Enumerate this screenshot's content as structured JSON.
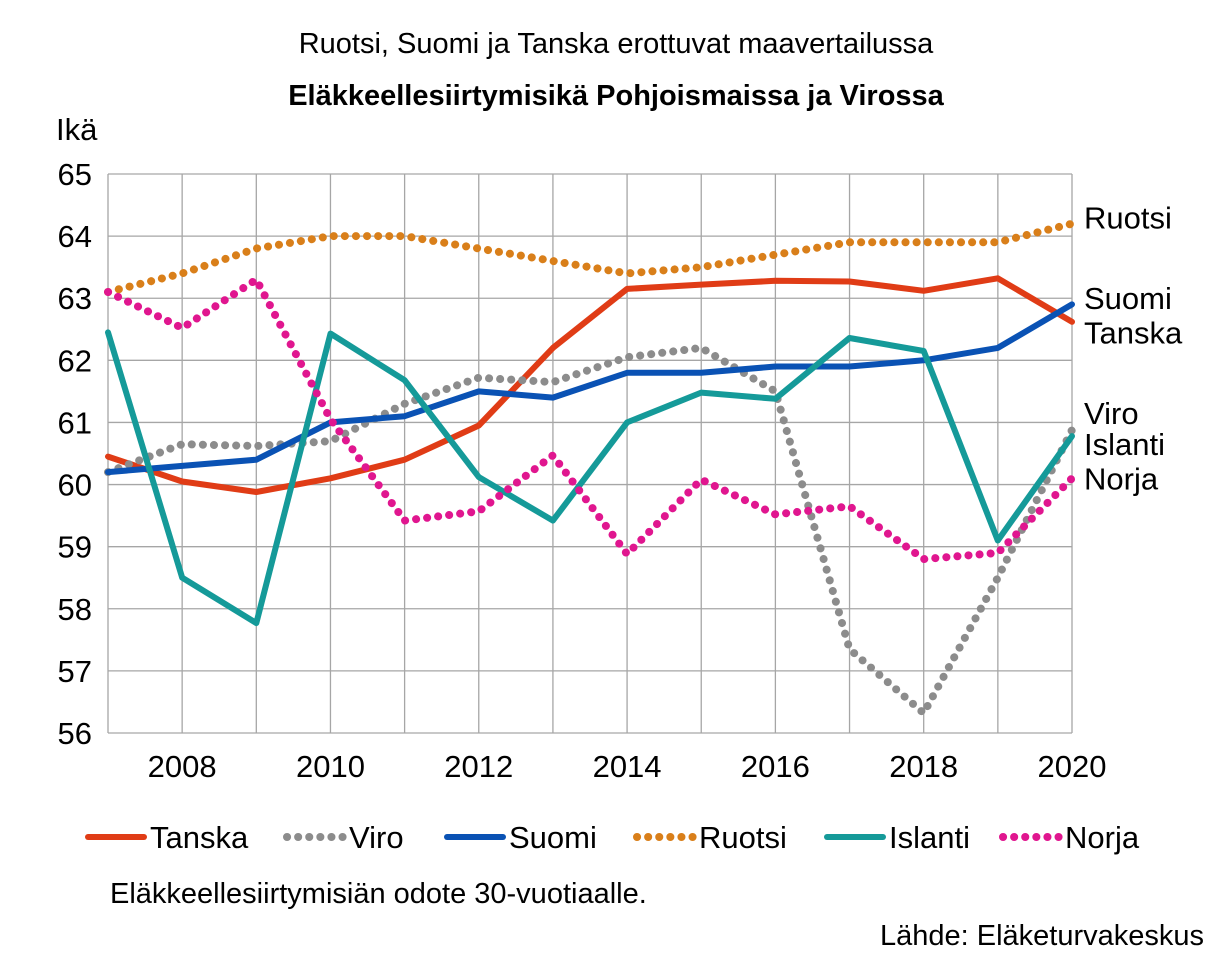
{
  "subtitle": "Ruotsi, Suomi ja Tanska erottuvat maavertailussa",
  "title": "Eläkkeellesiirtymisikä Pohjoismaissa ja Virossa",
  "footnote": "Eläkkeellesiirtymisiän odote 30-vuotiaalle.",
  "source": "Lähde: Eläketurvakeskus",
  "chart_data": {
    "type": "line",
    "ylabel": "Ikä",
    "xlabel": "",
    "ylim": [
      56,
      65
    ],
    "xlim": [
      2007,
      2020
    ],
    "yticks": [
      56,
      57,
      58,
      59,
      60,
      61,
      62,
      63,
      64,
      65
    ],
    "xticks": [
      2008,
      2010,
      2012,
      2014,
      2016,
      2018,
      2020
    ],
    "grid": true,
    "legend": "bottom",
    "x": [
      2007,
      2008,
      2009,
      2010,
      2011,
      2012,
      2013,
      2014,
      2015,
      2016,
      2017,
      2018,
      2019,
      2020
    ],
    "series": [
      {
        "name": "Tanska",
        "color": "#e03c16",
        "style": "solid",
        "values": [
          60.45,
          60.05,
          59.88,
          60.1,
          60.4,
          60.95,
          62.2,
          63.15,
          63.22,
          63.28,
          63.27,
          63.12,
          63.32,
          62.62
        ]
      },
      {
        "name": "Viro",
        "color": "#8c8c8c",
        "style": "dotted",
        "values": [
          60.2,
          60.65,
          60.62,
          60.7,
          61.3,
          61.72,
          61.65,
          62.05,
          62.2,
          61.5,
          57.35,
          56.32,
          58.5,
          60.88
        ]
      },
      {
        "name": "Suomi",
        "color": "#0a52b4",
        "style": "solid",
        "values": [
          60.2,
          60.3,
          60.4,
          61.0,
          61.1,
          61.5,
          61.4,
          61.8,
          61.8,
          61.9,
          61.9,
          62.0,
          62.2,
          62.9
        ]
      },
      {
        "name": "Ruotsi",
        "color": "#d97f1a",
        "style": "dotted",
        "values": [
          63.1,
          63.4,
          63.8,
          64.0,
          64.0,
          63.8,
          63.6,
          63.4,
          63.5,
          63.7,
          63.9,
          63.9,
          63.9,
          64.2
        ]
      },
      {
        "name": "Islanti",
        "color": "#159a99",
        "style": "solid",
        "values": [
          62.45,
          58.5,
          57.77,
          62.43,
          61.68,
          60.12,
          59.42,
          61.0,
          61.48,
          61.38,
          62.36,
          62.15,
          59.1,
          60.78
        ]
      },
      {
        "name": "Norja",
        "color": "#e0168f",
        "style": "dotted",
        "values": [
          63.1,
          62.52,
          63.3,
          61.05,
          59.42,
          59.57,
          60.47,
          58.88,
          60.08,
          59.52,
          59.65,
          58.8,
          58.9,
          60.1
        ]
      }
    ],
    "end_labels": [
      {
        "text": "Ruotsi",
        "y": 64.3
      },
      {
        "text": "Suomi",
        "y": 63.0
      },
      {
        "text": "Tanska",
        "y": 62.45
      },
      {
        "text": "Viro",
        "y": 61.15
      },
      {
        "text": "Islanti",
        "y": 60.65
      },
      {
        "text": "Norja",
        "y": 60.1
      }
    ]
  }
}
